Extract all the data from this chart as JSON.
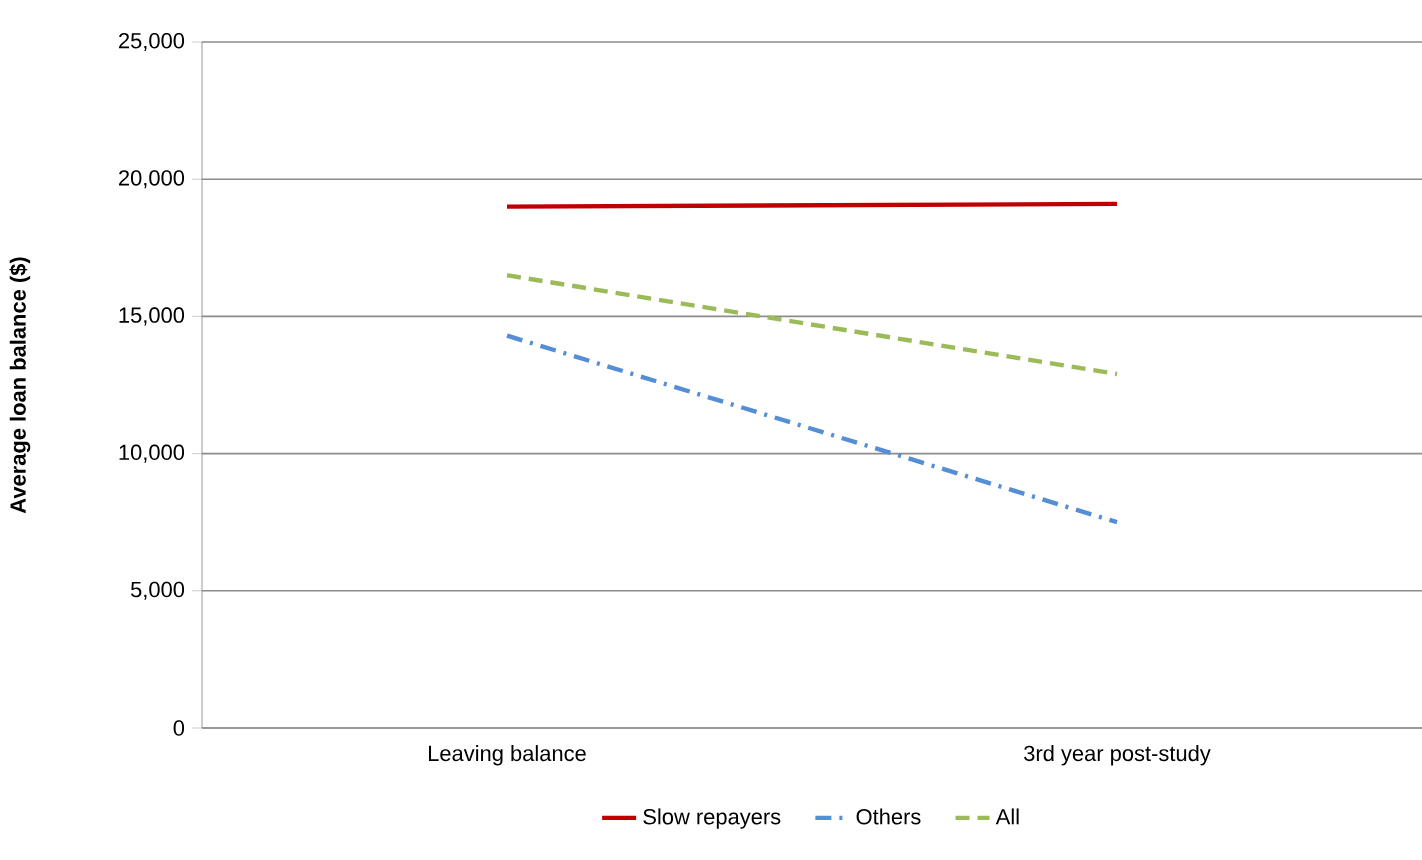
{
  "chart_data": {
    "type": "line",
    "ylabel": "Average loan balance ($)",
    "categories": [
      "Leaving balance",
      "3rd year post-study"
    ],
    "series": [
      {
        "name": "Slow repayers",
        "color": "#c00000",
        "values": [
          19000,
          19100
        ],
        "line_style": "solid"
      },
      {
        "name": "Others",
        "color": "#558ed5",
        "values": [
          14300,
          7500
        ],
        "line_style": "dashdot"
      },
      {
        "name": "All",
        "color": "#9bbb59",
        "values": [
          16500,
          12900
        ],
        "line_style": "dashed"
      }
    ],
    "ylim": [
      0,
      25000
    ],
    "yticks": [
      {
        "value": 0,
        "label": "0"
      },
      {
        "value": 5000,
        "label": "5,000"
      },
      {
        "value": 10000,
        "label": "10,000"
      },
      {
        "value": 15000,
        "label": "15,000"
      },
      {
        "value": 20000,
        "label": "20,000"
      },
      {
        "value": 25000,
        "label": "25,000"
      }
    ],
    "grid": "y",
    "legend": "bottom",
    "marker": "none"
  }
}
